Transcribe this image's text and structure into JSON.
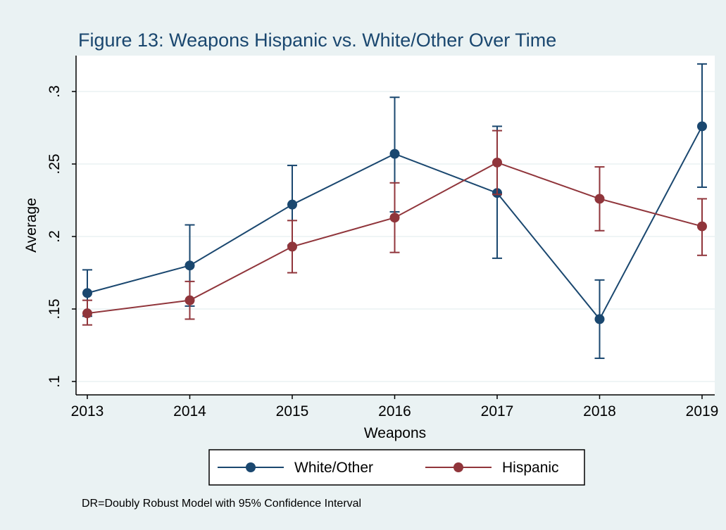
{
  "chart_data": {
    "type": "line",
    "title": "Figure 13: Weapons Hispanic vs. White/Other Over Time",
    "xlabel": "Weapons",
    "ylabel": "Average",
    "x": [
      2013,
      2014,
      2015,
      2016,
      2017,
      2018,
      2019
    ],
    "x_tick_labels": [
      "2013",
      "2014",
      "2015",
      "2016",
      "2017",
      "2018",
      "2019"
    ],
    "y_ticks": [
      0.1,
      0.15,
      0.2,
      0.25,
      0.3
    ],
    "y_tick_labels": [
      ".1",
      ".15",
      ".2",
      ".25",
      ".3"
    ],
    "xlim": [
      2013,
      2019
    ],
    "ylim": [
      0.1,
      0.325
    ],
    "grid": true,
    "error_bars": "95% confidence interval",
    "series": [
      {
        "name": "White/Other",
        "color": "#1a476f",
        "values": [
          0.161,
          0.18,
          0.222,
          0.257,
          0.23,
          0.143,
          0.276
        ],
        "ci_low": [
          0.145,
          0.152,
          0.194,
          0.217,
          0.185,
          0.116,
          0.234
        ],
        "ci_high": [
          0.177,
          0.208,
          0.249,
          0.296,
          0.276,
          0.17,
          0.319
        ]
      },
      {
        "name": "Hispanic",
        "color": "#90353b",
        "values": [
          0.147,
          0.156,
          0.193,
          0.213,
          0.251,
          0.226,
          0.207
        ],
        "ci_low": [
          0.139,
          0.143,
          0.175,
          0.189,
          0.229,
          0.204,
          0.187
        ],
        "ci_high": [
          0.156,
          0.169,
          0.211,
          0.237,
          0.273,
          0.248,
          0.226
        ]
      }
    ],
    "legend_position": "bottom",
    "note": "DR=Doubly Robust Model with 95% Confidence Interval"
  },
  "colors": {
    "background": "#eaf2f3",
    "plot_background": "#ffffff",
    "grid": "#eaf2f3",
    "axis": "#000000"
  }
}
